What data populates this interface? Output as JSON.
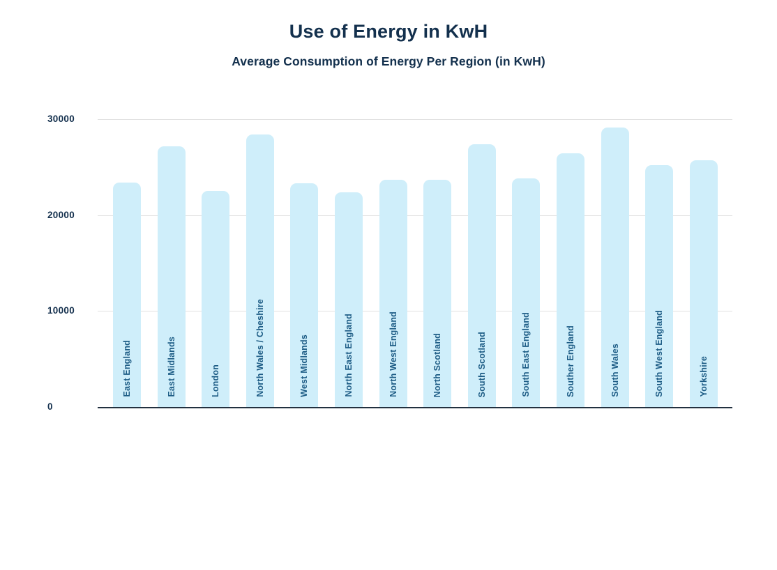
{
  "header": {
    "title": "Use of Energy in KwH",
    "subtitle": "Average Consumption of Energy Per Region (in KwH)"
  },
  "chart_data": {
    "type": "bar",
    "title": "Use of Energy in KwH",
    "subtitle": "Average Consumption of Energy Per Region (in KwH)",
    "categories": [
      "East England",
      "East Midlands",
      "London",
      "North Wales / Cheshire",
      "West Midlands",
      "North East England",
      "North West England",
      "North Scotland",
      "South Scotland",
      "South East England",
      "Souther England",
      "South Wales",
      "South West England",
      "Yorkshire"
    ],
    "values": [
      23400,
      27200,
      22500,
      28400,
      23350,
      22350,
      23650,
      23650,
      27350,
      23800,
      26450,
      29100,
      25200,
      25700
    ],
    "xlabel": "",
    "ylabel": "",
    "ylim": [
      0,
      30000
    ],
    "yticks": [
      0,
      10000,
      20000,
      30000
    ],
    "grid": "horizontal",
    "legend": "none",
    "colors": {
      "bar_fill": "#cfeefa",
      "bar_label_text": "#1d5c85",
      "axis_line": "#22303f",
      "gridline": "#e2e2e2",
      "title_text": "#13304d",
      "tick_text": "#15314e",
      "background": "#ffffff"
    }
  }
}
